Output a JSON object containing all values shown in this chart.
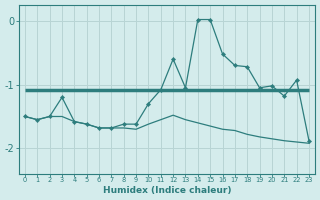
{
  "xlabel": "Humidex (Indice chaleur)",
  "x": [
    0,
    1,
    2,
    3,
    4,
    5,
    6,
    7,
    8,
    9,
    10,
    11,
    12,
    13,
    14,
    15,
    16,
    17,
    18,
    19,
    20,
    21,
    22,
    23
  ],
  "zigzag": [
    -1.5,
    -1.55,
    -1.5,
    -1.2,
    -1.58,
    -1.62,
    -1.68,
    -1.68,
    -1.62,
    -1.62,
    -1.3,
    -1.08,
    -0.6,
    -1.05,
    0.02,
    0.02,
    -0.52,
    -0.7,
    -0.72,
    -1.05,
    -1.02,
    -1.18,
    -0.93,
    -1.88
  ],
  "flat": [
    -1.08,
    -1.08,
    -1.08,
    -1.08,
    -1.08,
    -1.08,
    -1.08,
    -1.08,
    -1.08,
    -1.08,
    -1.08,
    -1.08,
    -1.08,
    -1.08,
    -1.08,
    -1.08,
    -1.08,
    -1.08,
    -1.08,
    -1.08,
    -1.08,
    -1.08,
    -1.08,
    -1.08
  ],
  "lower": [
    -1.5,
    -1.55,
    -1.5,
    -1.5,
    -1.58,
    -1.62,
    -1.68,
    -1.68,
    -1.68,
    -1.7,
    -1.62,
    -1.55,
    -1.48,
    -1.55,
    -1.6,
    -1.65,
    -1.7,
    -1.72,
    -1.78,
    -1.82,
    -1.85,
    -1.88,
    -1.9,
    -1.92
  ],
  "bg_color": "#d4ecec",
  "line_color": "#2d7d7d",
  "grid_color": "#b8d4d4",
  "ylim": [
    -2.4,
    0.25
  ],
  "xlim": [
    -0.5,
    23.5
  ],
  "yticks": [
    0,
    -1,
    -2
  ],
  "ytick_labels": [
    "0",
    "−1",
    "−2"
  ],
  "xticks": [
    0,
    1,
    2,
    3,
    4,
    5,
    6,
    7,
    8,
    9,
    10,
    11,
    12,
    13,
    14,
    15,
    16,
    17,
    18,
    19,
    20,
    21,
    22,
    23
  ]
}
